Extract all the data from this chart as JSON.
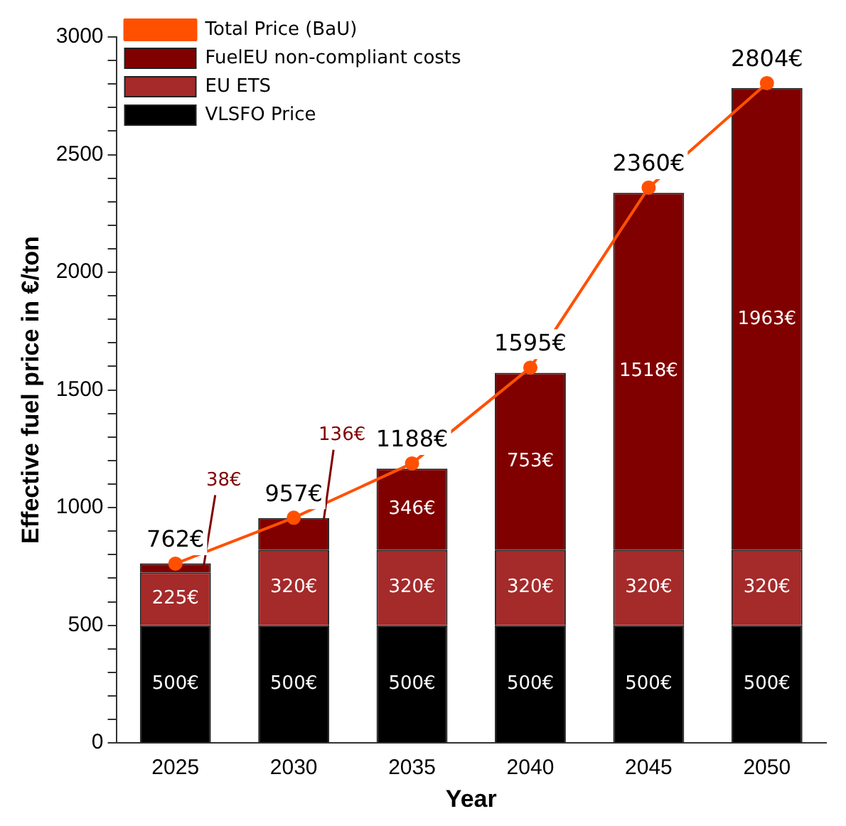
{
  "chart_data": {
    "type": "bar",
    "stacked": true,
    "xlabel": "Year",
    "ylabel": "Effective fuel price in €/ton",
    "categories": [
      "2025",
      "2030",
      "2035",
      "2040",
      "2045",
      "2050"
    ],
    "series": [
      {
        "name": "VLSFO Price",
        "color": "#000000",
        "values": [
          500,
          500,
          500,
          500,
          500,
          500
        ],
        "value_labels": [
          "500€",
          "500€",
          "500€",
          "500€",
          "500€",
          "500€"
        ]
      },
      {
        "name": "EU ETS",
        "color": "#a52a2a",
        "values": [
          225,
          320,
          320,
          320,
          320,
          320
        ],
        "value_labels": [
          "225€",
          "320€",
          "320€",
          "320€",
          "320€",
          "320€"
        ]
      },
      {
        "name": "FuelEU non-compliant costs",
        "color": "#800000",
        "values": [
          38,
          136,
          346,
          753,
          1518,
          1963
        ],
        "value_labels": [
          "38€",
          "136€",
          "346€",
          "753€",
          "1518€",
          "1963€"
        ]
      },
      {
        "name": "Total Price (BaU)",
        "type": "line",
        "color": "#ff5000",
        "values": [
          762,
          957,
          1188,
          1595,
          2360,
          2804
        ],
        "value_labels": [
          "762€",
          "957€",
          "1188€",
          "1595€",
          "2360€",
          "2804€"
        ]
      }
    ],
    "ylim": [
      0,
      3000
    ],
    "yticks": [
      0,
      {
        "value": 100,
        "label": null
      },
      {
        "value": 200,
        "label": null
      },
      {
        "value": 300,
        "label": null
      },
      {
        "value": 400,
        "label": null
      },
      500,
      {
        "value": 600,
        "label": null
      },
      {
        "value": 700,
        "label": null
      },
      {
        "value": 800,
        "label": null
      },
      {
        "value": 900,
        "label": null
      },
      1000,
      {
        "value": 1100,
        "label": null
      },
      {
        "value": 1200,
        "label": null
      },
      {
        "value": 1300,
        "label": null
      },
      {
        "value": 1400,
        "label": null
      },
      1500,
      {
        "value": 1600,
        "label": null
      },
      {
        "value": 1700,
        "label": null
      },
      {
        "value": 1800,
        "label": null
      },
      {
        "value": 1900,
        "label": null
      },
      2000,
      {
        "value": 2100,
        "label": null
      },
      {
        "value": 2200,
        "label": null
      },
      {
        "value": 2300,
        "label": null
      },
      {
        "value": 2400,
        "label": null
      },
      2500,
      {
        "value": 2600,
        "label": null
      },
      {
        "value": 2700,
        "label": null
      },
      {
        "value": 2800,
        "label": null
      },
      {
        "value": 2900,
        "label": null
      },
      3000
    ],
    "grid": false,
    "legend": "top left",
    "marker": "circle"
  }
}
